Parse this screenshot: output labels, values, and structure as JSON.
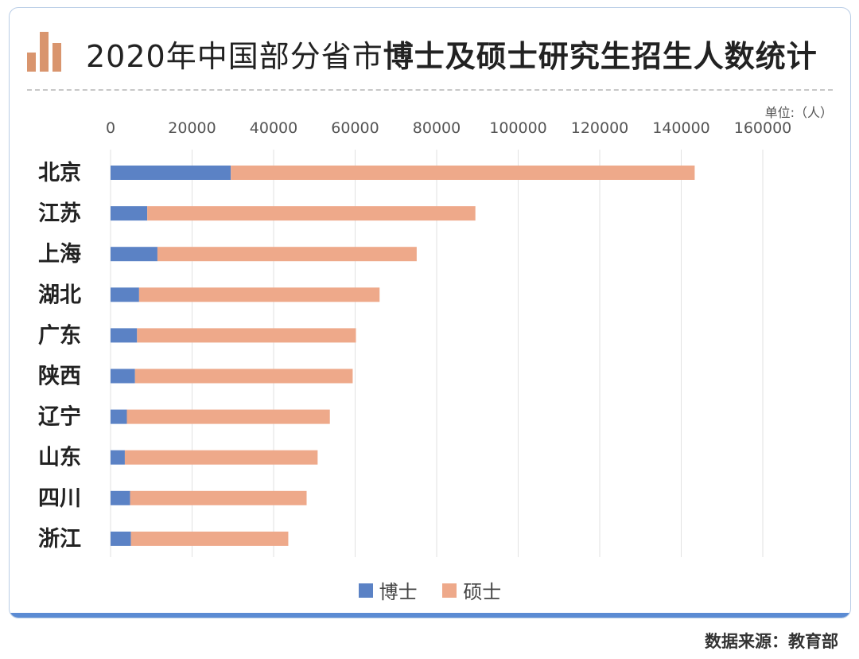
{
  "title": {
    "normal": "2020年中国部分省市",
    "bold": "博士及硕士研究生招生人数统计"
  },
  "unit_label": "单位:（人）",
  "source_label": "数据来源：教育部",
  "colors": {
    "phd": "#5b82c5",
    "master": "#eea98a",
    "icon": "#d9956e"
  },
  "chart_data": {
    "type": "bar",
    "orientation": "horizontal",
    "stacked": true,
    "categories": [
      "北京",
      "江苏",
      "上海",
      "湖北",
      "广东",
      "陕西",
      "辽宁",
      "山东",
      "四川",
      "浙江"
    ],
    "series": [
      {
        "name": "博士",
        "values": [
          29500,
          9000,
          11500,
          7000,
          6500,
          6000,
          4000,
          3500,
          4800,
          5000
        ]
      },
      {
        "name": "硕士",
        "values": [
          113800,
          80500,
          63600,
          59000,
          53700,
          53400,
          49800,
          47300,
          43300,
          38600
        ]
      }
    ],
    "xlim": [
      0,
      160000
    ],
    "xticks": [
      0,
      20000,
      40000,
      60000,
      80000,
      100000,
      120000,
      140000,
      160000
    ],
    "xtick_labels": [
      "0",
      "20000",
      "40000",
      "60000",
      "80000",
      "100000",
      "120000",
      "140000",
      "160000"
    ],
    "grid": true,
    "legend": "bottom"
  }
}
